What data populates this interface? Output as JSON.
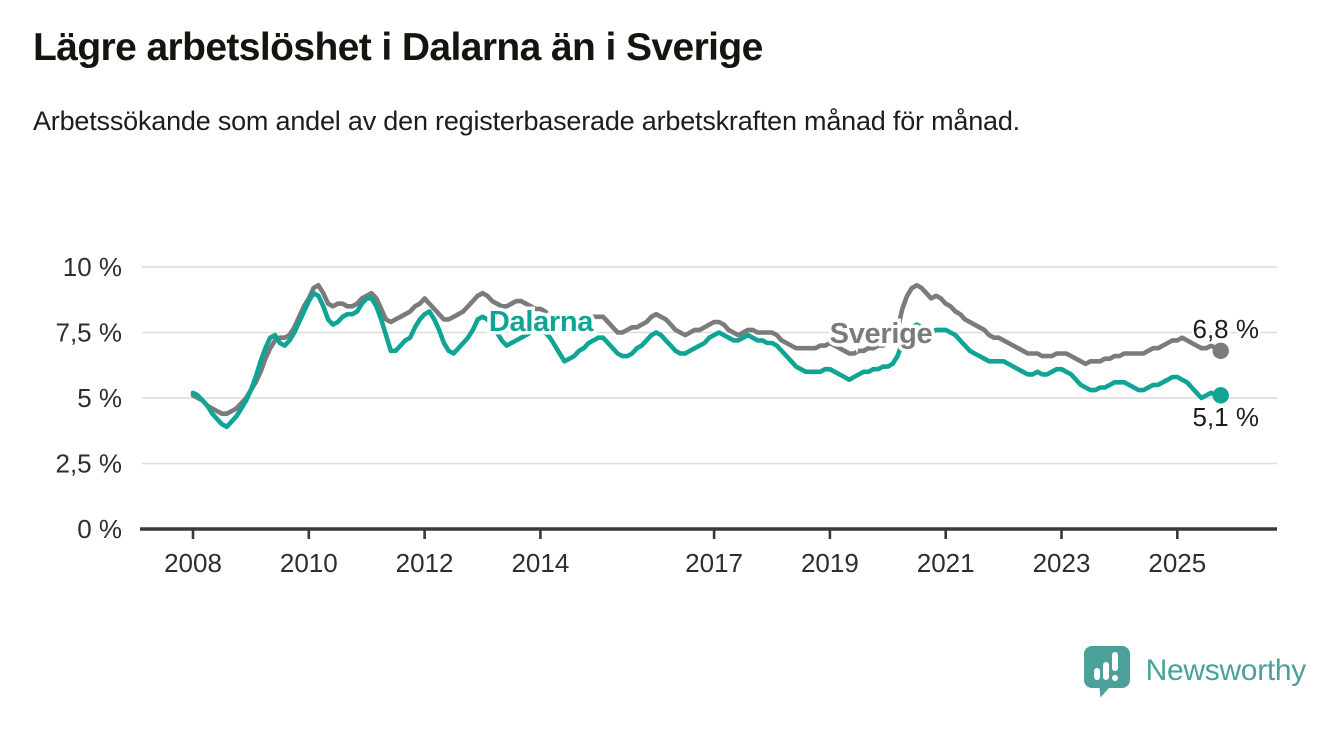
{
  "header": {
    "title": "Lägre arbetslöshet i Dalarna än i Sverige",
    "subtitle": "Arbetssökande som andel av den registerbaserade arbetskraften månad för månad."
  },
  "footer": {
    "brand": "Newsworthy",
    "brand_color": "#4ba09a"
  },
  "colors": {
    "dalarna": "#10a494",
    "sverige": "#7b7b7b",
    "gridline": "#dcdcdc",
    "axis": "#3a3a3a",
    "tick_label": "#2e2e2e",
    "value_label": "#1d1d1b"
  },
  "chart_data": {
    "type": "line",
    "unit": "%",
    "x_start": "2008-01",
    "x_freq": "monthly",
    "grid": true,
    "x_axis": {
      "tick_years": [
        2008,
        2010,
        2012,
        2014,
        2017,
        2019,
        2021,
        2023,
        2025
      ],
      "range_years": [
        2008,
        2025.75
      ]
    },
    "y_axis": {
      "tick_labels": [
        "0 %",
        "2,5 %",
        "5 %",
        "7,5 %",
        "10 %"
      ],
      "tick_values": [
        0,
        2.5,
        5,
        7.5,
        10
      ],
      "ylim": [
        0,
        10.4
      ]
    },
    "series": [
      {
        "name": "Sverige",
        "color": "#7b7b7b",
        "end_label": "6,8 %",
        "last_value": 6.8,
        "values": [
          5.1,
          5.0,
          4.9,
          4.7,
          4.6,
          4.5,
          4.4,
          4.4,
          4.5,
          4.6,
          4.8,
          5.0,
          5.3,
          5.6,
          6.0,
          6.5,
          6.9,
          7.2,
          7.3,
          7.3,
          7.4,
          7.7,
          8.1,
          8.5,
          8.8,
          9.2,
          9.3,
          9.0,
          8.6,
          8.5,
          8.6,
          8.6,
          8.5,
          8.5,
          8.6,
          8.8,
          8.9,
          9.0,
          8.8,
          8.4,
          8.0,
          7.9,
          8.0,
          8.1,
          8.2,
          8.3,
          8.5,
          8.6,
          8.8,
          8.6,
          8.4,
          8.2,
          8.0,
          8.0,
          8.1,
          8.2,
          8.3,
          8.5,
          8.7,
          8.9,
          9.0,
          8.9,
          8.7,
          8.6,
          8.5,
          8.5,
          8.6,
          8.7,
          8.7,
          8.6,
          8.5,
          8.4,
          8.4,
          8.3,
          8.1,
          8.0,
          7.8,
          7.7,
          7.8,
          7.9,
          7.9,
          7.9,
          8.0,
          8.1,
          8.1,
          8.1,
          7.9,
          7.7,
          7.5,
          7.5,
          7.6,
          7.7,
          7.7,
          7.8,
          7.9,
          8.1,
          8.2,
          8.1,
          8.0,
          7.8,
          7.6,
          7.5,
          7.4,
          7.5,
          7.6,
          7.6,
          7.7,
          7.8,
          7.9,
          7.9,
          7.8,
          7.6,
          7.5,
          7.4,
          7.5,
          7.6,
          7.6,
          7.5,
          7.5,
          7.5,
          7.5,
          7.4,
          7.2,
          7.1,
          7.0,
          6.9,
          6.9,
          6.9,
          6.9,
          6.9,
          7.0,
          7.0,
          7.1,
          7.0,
          6.9,
          6.8,
          6.7,
          6.7,
          6.8,
          6.8,
          6.9,
          6.9,
          7.0,
          7.0,
          7.1,
          7.2,
          7.6,
          8.4,
          8.9,
          9.2,
          9.3,
          9.2,
          9.0,
          8.8,
          8.9,
          8.8,
          8.6,
          8.5,
          8.3,
          8.2,
          8.0,
          7.9,
          7.8,
          7.7,
          7.6,
          7.4,
          7.3,
          7.3,
          7.2,
          7.1,
          7.0,
          6.9,
          6.8,
          6.7,
          6.7,
          6.7,
          6.6,
          6.6,
          6.6,
          6.7,
          6.7,
          6.7,
          6.6,
          6.5,
          6.4,
          6.3,
          6.4,
          6.4,
          6.4,
          6.5,
          6.5,
          6.6,
          6.6,
          6.7,
          6.7,
          6.7,
          6.7,
          6.7,
          6.8,
          6.9,
          6.9,
          7.0,
          7.1,
          7.2,
          7.2,
          7.3,
          7.2,
          7.1,
          7.0,
          6.9,
          6.9,
          7.0,
          6.9,
          6.8
        ]
      },
      {
        "name": "Dalarna",
        "color": "#10a494",
        "end_label": "5,1 %",
        "last_value": 5.1,
        "values": [
          5.2,
          5.1,
          4.9,
          4.7,
          4.4,
          4.2,
          4.0,
          3.9,
          4.1,
          4.3,
          4.6,
          4.9,
          5.3,
          5.8,
          6.4,
          6.9,
          7.3,
          7.4,
          7.1,
          7.0,
          7.2,
          7.5,
          7.9,
          8.3,
          8.7,
          9.0,
          8.9,
          8.5,
          8.0,
          7.8,
          7.9,
          8.1,
          8.2,
          8.2,
          8.3,
          8.6,
          8.8,
          8.8,
          8.5,
          8.0,
          7.4,
          6.8,
          6.8,
          7.0,
          7.2,
          7.3,
          7.7,
          8.0,
          8.2,
          8.3,
          8.0,
          7.6,
          7.1,
          6.8,
          6.7,
          6.9,
          7.1,
          7.3,
          7.6,
          8.0,
          8.1,
          8.0,
          7.8,
          7.5,
          7.2,
          7.0,
          7.1,
          7.2,
          7.3,
          7.4,
          7.5,
          7.6,
          7.6,
          7.5,
          7.3,
          7.0,
          6.7,
          6.4,
          6.5,
          6.6,
          6.8,
          6.9,
          7.1,
          7.2,
          7.3,
          7.3,
          7.1,
          6.9,
          6.7,
          6.6,
          6.6,
          6.7,
          6.9,
          7.0,
          7.2,
          7.4,
          7.5,
          7.4,
          7.2,
          7.0,
          6.8,
          6.7,
          6.7,
          6.8,
          6.9,
          7.0,
          7.1,
          7.3,
          7.4,
          7.5,
          7.4,
          7.3,
          7.2,
          7.2,
          7.3,
          7.4,
          7.3,
          7.2,
          7.2,
          7.1,
          7.1,
          7.0,
          6.8,
          6.6,
          6.4,
          6.2,
          6.1,
          6.0,
          6.0,
          6.0,
          6.0,
          6.1,
          6.1,
          6.0,
          5.9,
          5.8,
          5.7,
          5.8,
          5.9,
          6.0,
          6.0,
          6.1,
          6.1,
          6.2,
          6.2,
          6.3,
          6.6,
          7.1,
          7.5,
          7.7,
          7.8,
          7.7,
          7.6,
          7.5,
          7.6,
          7.6,
          7.6,
          7.5,
          7.4,
          7.2,
          7.0,
          6.8,
          6.7,
          6.6,
          6.5,
          6.4,
          6.4,
          6.4,
          6.4,
          6.3,
          6.2,
          6.1,
          6.0,
          5.9,
          5.9,
          6.0,
          5.9,
          5.9,
          6.0,
          6.1,
          6.1,
          6.0,
          5.9,
          5.7,
          5.5,
          5.4,
          5.3,
          5.3,
          5.4,
          5.4,
          5.5,
          5.6,
          5.6,
          5.6,
          5.5,
          5.4,
          5.3,
          5.3,
          5.4,
          5.5,
          5.5,
          5.6,
          5.7,
          5.8,
          5.8,
          5.7,
          5.6,
          5.4,
          5.2,
          5.0,
          5.1,
          5.2,
          5.1,
          5.1
        ]
      }
    ],
    "series_labels": [
      {
        "text": "Dalarna",
        "color": "#10a494"
      },
      {
        "text": "Sverige",
        "color": "#7b7b7b"
      }
    ]
  }
}
